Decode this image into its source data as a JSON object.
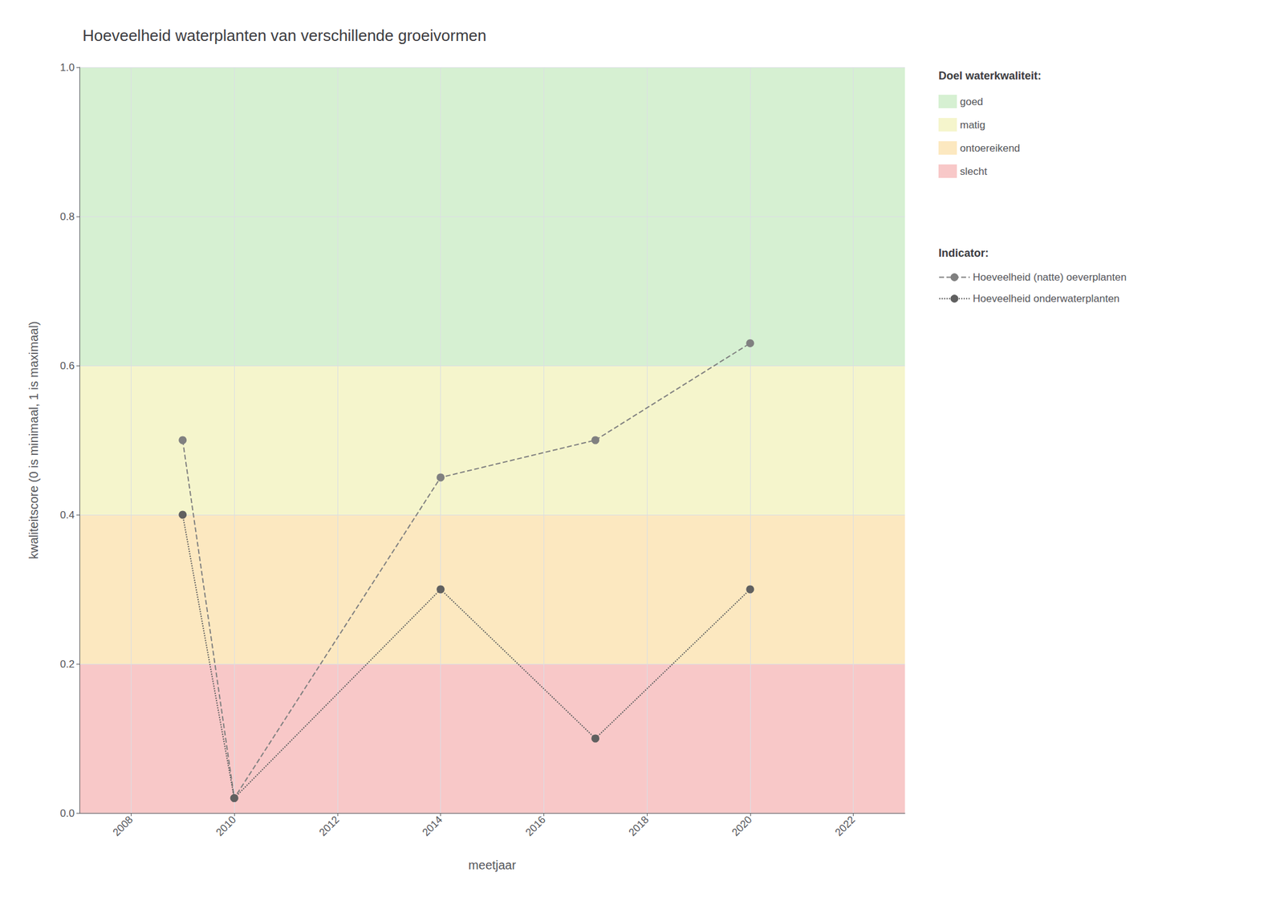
{
  "chart_data": {
    "type": "line",
    "title": "Hoeveelheid waterplanten van verschillende groeivormen",
    "xlabel": "meetjaar",
    "ylabel": "kwaliteitscore (0 is minimaal, 1 is maximaal)",
    "xlim": [
      2007,
      2023
    ],
    "ylim": [
      0.0,
      1.0
    ],
    "xticks": [
      2008,
      2010,
      2012,
      2014,
      2016,
      2018,
      2020,
      2022
    ],
    "yticks": [
      {
        "value": 0.0,
        "label": "0.0"
      },
      0.2,
      0.4,
      0.6,
      0.8,
      {
        "value": 1.0,
        "label": "1.0"
      }
    ],
    "grid": true,
    "legend": "right",
    "bands_title": "Doel waterkwaliteit:",
    "bands": [
      {
        "label": "goed",
        "color": "#d6f0d2",
        "range": [
          0.6,
          1.0
        ]
      },
      {
        "label": "matig",
        "color": "#f5f5cc",
        "range": [
          0.4,
          0.6
        ]
      },
      {
        "label": "ontoereikend",
        "color": "#fce8c0",
        "range": [
          0.2,
          0.4
        ]
      },
      {
        "label": "slecht",
        "color": "#f8c8c8",
        "range": [
          0.0,
          0.2
        ]
      }
    ],
    "series_title": "Indicator:",
    "x": [
      2009,
      2010,
      2014,
      2017,
      2020
    ],
    "series": [
      {
        "name": "Hoeveelheid (natte) oeverplanten",
        "color": "#808080",
        "line_style": "dashed",
        "marker": "circle",
        "values": [
          0.5,
          0.02,
          0.45,
          0.5,
          0.63
        ]
      },
      {
        "name": "Hoeveelheid onderwaterplanten",
        "color": "#606060",
        "line_style": "dotted",
        "marker": "circle",
        "values": [
          0.4,
          0.02,
          0.3,
          0.1,
          0.3
        ]
      }
    ]
  }
}
